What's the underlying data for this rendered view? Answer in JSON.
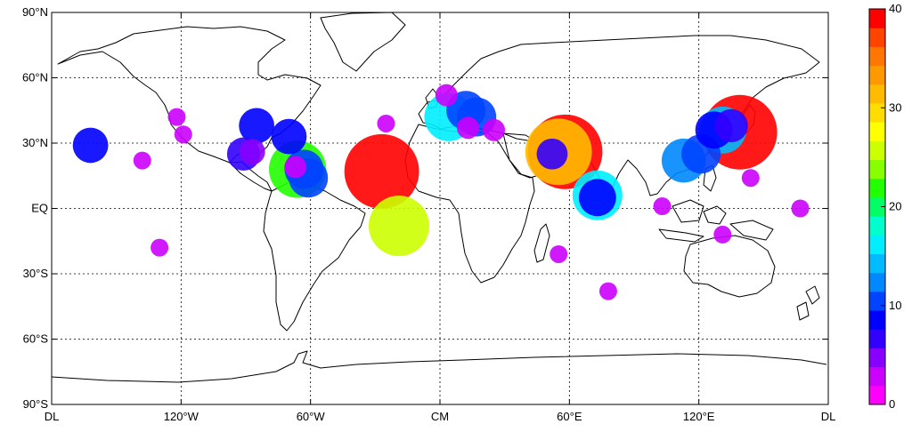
{
  "lat_labels": [
    {
      "lat": 90,
      "label": "90°N"
    },
    {
      "lat": 60,
      "label": "60°N"
    },
    {
      "lat": 30,
      "label": "30°N"
    },
    {
      "lat": 0,
      "label": "EQ"
    },
    {
      "lat": -30,
      "label": "30°S"
    },
    {
      "lat": -60,
      "label": "60°S"
    },
    {
      "lat": -90,
      "label": "90°S"
    }
  ],
  "lon_labels": [
    {
      "lon": -180,
      "label": "DL"
    },
    {
      "lon": -120,
      "label": "120°W"
    },
    {
      "lon": -60,
      "label": "60°W"
    },
    {
      "lon": 0,
      "label": "CM"
    },
    {
      "lon": 60,
      "label": "60°E"
    },
    {
      "lon": 120,
      "label": "120°E"
    },
    {
      "lon": 180,
      "label": "DL"
    }
  ],
  "colorbar": {
    "min": 0,
    "max": 40,
    "ticks": [
      "0",
      "10",
      "20",
      "30",
      "40"
    ],
    "tick_values": [
      0,
      10,
      20,
      30,
      40
    ],
    "colors": [
      "#ff00ff",
      "#cc00ff",
      "#8800ff",
      "#3300ff",
      "#0000ff",
      "#0044ff",
      "#0088ff",
      "#00bbff",
      "#00eeff",
      "#00ffcc",
      "#00ff66",
      "#22ff00",
      "#88ff00",
      "#ccff00",
      "#ffff00",
      "#ffdd00",
      "#ffbb00",
      "#ff9900",
      "#ff7700",
      "#ff4400",
      "#ff0000"
    ]
  },
  "chart_data": {
    "type": "bubble-map",
    "projection": "equirectangular",
    "lon_range": [
      -180,
      180
    ],
    "lat_range": [
      -90,
      90
    ],
    "grid": true,
    "colorbar_position": "right",
    "points": [
      {
        "lon": -162,
        "lat": 29,
        "value": 7
      },
      {
        "lon": -138,
        "lat": 22,
        "value": 1
      },
      {
        "lon": -130,
        "lat": -18,
        "value": 1
      },
      {
        "lon": -122,
        "lat": 42,
        "value": 1
      },
      {
        "lon": -119,
        "lat": 34,
        "value": 1
      },
      {
        "lon": -85,
        "lat": 38,
        "value": 7
      },
      {
        "lon": -70,
        "lat": 33,
        "value": 7
      },
      {
        "lon": -91,
        "lat": 25,
        "value": 6
      },
      {
        "lon": -87,
        "lat": 26,
        "value": 3
      },
      {
        "lon": -66,
        "lat": 18,
        "value": 22
      },
      {
        "lon": -63,
        "lat": 18,
        "value": 9
      },
      {
        "lon": -61,
        "lat": 14,
        "value": 9
      },
      {
        "lon": -67,
        "lat": 19,
        "value": 2
      },
      {
        "lon": -27,
        "lat": 17,
        "value": 40
      },
      {
        "lon": -19,
        "lat": -8,
        "value": 25
      },
      {
        "lon": -25,
        "lat": 39,
        "value": 1
      },
      {
        "lon": 4,
        "lat": 42,
        "value": 15
      },
      {
        "lon": 3,
        "lat": 52,
        "value": 2
      },
      {
        "lon": 12,
        "lat": 45,
        "value": 9
      },
      {
        "lon": 17,
        "lat": 42,
        "value": 9
      },
      {
        "lon": 13,
        "lat": 37,
        "value": 2
      },
      {
        "lon": 25,
        "lat": 36,
        "value": 2
      },
      {
        "lon": 55,
        "lat": 26,
        "value": 31
      },
      {
        "lon": 58,
        "lat": 26,
        "value": 40
      },
      {
        "lon": 52,
        "lat": 25,
        "value": 5
      },
      {
        "lon": 73,
        "lat": 6,
        "value": 16
      },
      {
        "lon": 73,
        "lat": 5,
        "value": 8
      },
      {
        "lon": 55,
        "lat": -21,
        "value": 1
      },
      {
        "lon": 78,
        "lat": -38,
        "value": 1
      },
      {
        "lon": 113,
        "lat": 22,
        "value": 12
      },
      {
        "lon": 121,
        "lat": 25,
        "value": 9
      },
      {
        "lon": 127,
        "lat": 36,
        "value": 8
      },
      {
        "lon": 131,
        "lat": 36,
        "value": 14
      },
      {
        "lon": 139,
        "lat": 35,
        "value": 40
      },
      {
        "lon": 135,
        "lat": 38,
        "value": 6
      },
      {
        "lon": 144,
        "lat": 14,
        "value": 1
      },
      {
        "lon": 167,
        "lat": 0,
        "value": 1
      },
      {
        "lon": 103,
        "lat": 1,
        "value": 1
      },
      {
        "lon": 131,
        "lat": -12,
        "value": 1
      }
    ]
  }
}
